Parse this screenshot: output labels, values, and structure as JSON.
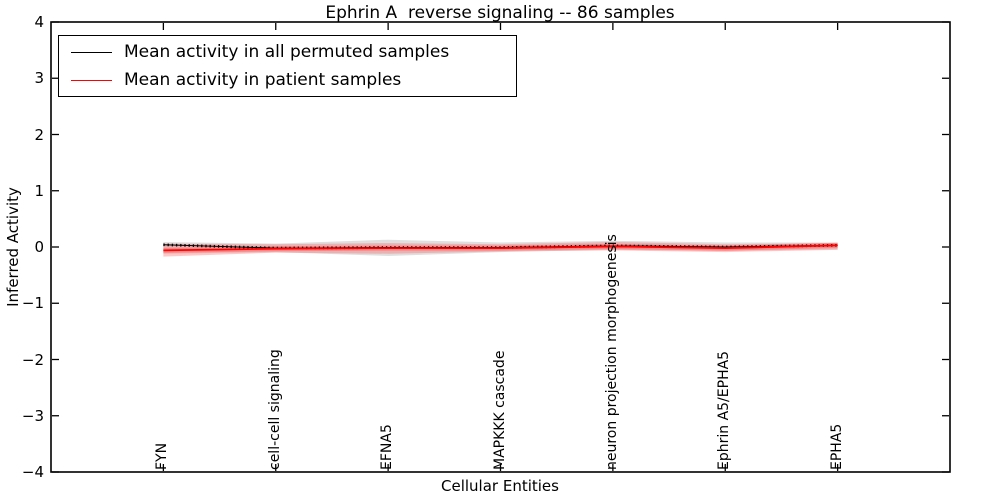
{
  "title": "Ephrin A  reverse signaling -- 86 samples",
  "axes": {
    "ylabel": "Inferred Activity",
    "xlabel": "Cellular Entities",
    "yticks": [
      4,
      3,
      2,
      1,
      0,
      -1,
      -2,
      -3,
      -4
    ],
    "ylim": [
      -4,
      4
    ]
  },
  "legend": {
    "items": [
      {
        "label": "Mean activity in all permuted samples",
        "color": "#000000"
      },
      {
        "label": "Mean activity in patient samples",
        "color": "#ff0000"
      }
    ]
  },
  "chart_data": {
    "type": "line",
    "title": "Ephrin A  reverse signaling -- 86 samples",
    "xlabel": "Cellular Entities",
    "ylabel": "Inferred Activity",
    "ylim": [
      -4,
      4
    ],
    "yticks": [
      4,
      3,
      2,
      1,
      0,
      -1,
      -2,
      -3,
      -4
    ],
    "grid": false,
    "legend_position": "upper left",
    "categories": [
      "FYN",
      "cell-cell signaling",
      "EFNA5",
      "MAPKKK cascade",
      "neuron projection morphogenesis",
      "Ephrin A5/EPHA5",
      "EPHA5"
    ],
    "series": [
      {
        "name": "Mean activity in all permuted samples",
        "color": "#000000",
        "style": "line-with-dot-markers",
        "values": [
          0.04,
          -0.02,
          -0.01,
          -0.01,
          0.02,
          0.0,
          0.03
        ],
        "band_upper": [
          0.09,
          0.06,
          0.13,
          0.08,
          0.11,
          0.08,
          0.08
        ],
        "band_lower": [
          -0.12,
          -0.09,
          -0.16,
          -0.09,
          -0.05,
          -0.07,
          -0.04
        ],
        "band_color": "#aaaaaa"
      },
      {
        "name": "Mean activity in patient samples",
        "color": "#ff0000",
        "style": "line",
        "values": [
          -0.06,
          -0.03,
          -0.02,
          -0.02,
          0.01,
          -0.02,
          0.03
        ],
        "band_upper": [
          0.06,
          0.05,
          0.07,
          0.05,
          0.09,
          0.05,
          0.07
        ],
        "band_lower": [
          -0.17,
          -0.1,
          -0.12,
          -0.08,
          -0.06,
          -0.09,
          -0.05
        ],
        "inner_band_halfwidth": 0.045,
        "band_color": "#ff5555"
      }
    ]
  }
}
